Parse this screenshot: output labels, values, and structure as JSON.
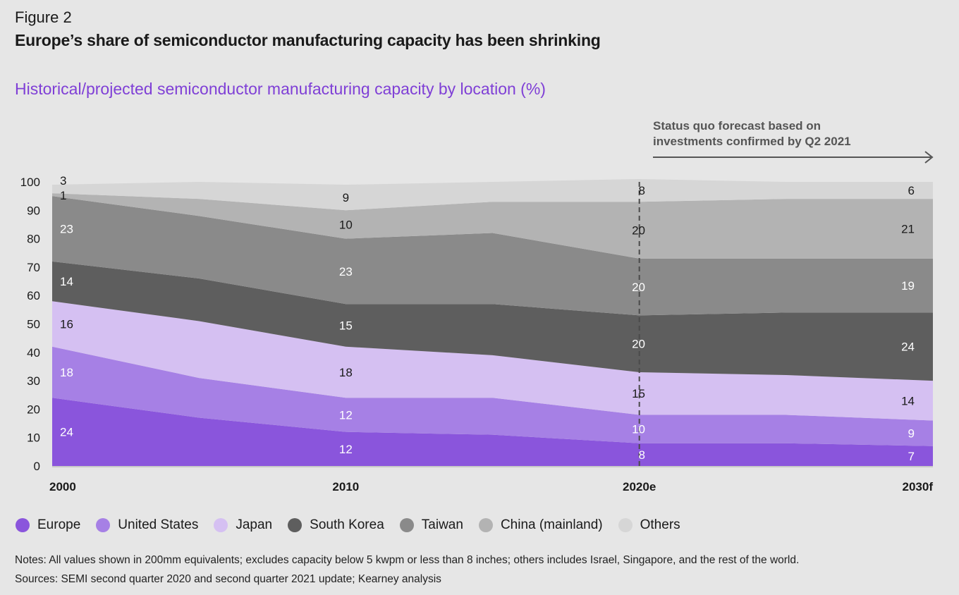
{
  "header": {
    "figure_label": "Figure 2",
    "title": "Europe’s share of semiconductor manufacturing capacity has been shrinking",
    "subtitle": "Historical/projected semiconductor manufacturing capacity by location (%)",
    "forecast_note_line1": "Status quo forecast based on",
    "forecast_note_line2": "investments confirmed by Q2 2021"
  },
  "colors": {
    "Europe": "#8a55dc",
    "United States": "#a680e5",
    "Japan": "#d5c0f2",
    "South Korea": "#5e5e5e",
    "Taiwan": "#8a8a8a",
    "China (mainland)": "#b3b3b3",
    "Others": "#d6d6d6"
  },
  "chart_data": {
    "type": "area",
    "stacked": true,
    "x": [
      2000,
      2005,
      2010,
      2015,
      2020,
      2025,
      2030
    ],
    "x_tick_labels": [
      {
        "x": 2000,
        "label": "2000"
      },
      {
        "x": 2010,
        "label": "2010"
      },
      {
        "x": 2020,
        "label": "2020e"
      },
      {
        "x": 2030,
        "label": "2030f"
      }
    ],
    "ylim": [
      0,
      100
    ],
    "y_ticks": [
      0,
      10,
      20,
      30,
      40,
      50,
      60,
      70,
      80,
      90,
      100
    ],
    "forecast_divider_x": 2020,
    "series": [
      {
        "name": "Europe",
        "values": [
          24,
          17,
          12,
          11,
          8,
          8,
          7
        ]
      },
      {
        "name": "United States",
        "values": [
          18,
          14,
          12,
          13,
          10,
          10,
          9
        ]
      },
      {
        "name": "Japan",
        "values": [
          16,
          20,
          18,
          15,
          15,
          14,
          14
        ]
      },
      {
        "name": "South Korea",
        "values": [
          14,
          15,
          15,
          18,
          20,
          22,
          24
        ]
      },
      {
        "name": "Taiwan",
        "values": [
          23,
          22,
          23,
          25,
          20,
          19,
          19
        ]
      },
      {
        "name": "China (mainland)",
        "values": [
          1,
          6,
          10,
          11,
          20,
          21,
          21
        ]
      },
      {
        "name": "Others",
        "values": [
          3,
          6,
          9,
          7,
          8,
          6,
          6
        ]
      }
    ],
    "data_labels": [
      {
        "series": "Europe",
        "x": 2000,
        "text": "24"
      },
      {
        "series": "United States",
        "x": 2000,
        "text": "18"
      },
      {
        "series": "Japan",
        "x": 2000,
        "text": "16"
      },
      {
        "series": "South Korea",
        "x": 2000,
        "text": "14"
      },
      {
        "series": "Taiwan",
        "x": 2000,
        "text": "23"
      },
      {
        "series": "China (mainland)",
        "x": 2000,
        "text": "1"
      },
      {
        "series": "Others",
        "x": 2000,
        "text": "3"
      },
      {
        "series": "Europe",
        "x": 2010,
        "text": "12"
      },
      {
        "series": "United States",
        "x": 2010,
        "text": "12"
      },
      {
        "series": "Japan",
        "x": 2010,
        "text": "18"
      },
      {
        "series": "South Korea",
        "x": 2010,
        "text": "15"
      },
      {
        "series": "Taiwan",
        "x": 2010,
        "text": "23"
      },
      {
        "series": "China (mainland)",
        "x": 2010,
        "text": "10"
      },
      {
        "series": "Others",
        "x": 2010,
        "text": "9"
      },
      {
        "series": "Europe",
        "x": 2020,
        "text": "8"
      },
      {
        "series": "United States",
        "x": 2020,
        "text": "10"
      },
      {
        "series": "Japan",
        "x": 2020,
        "text": "15"
      },
      {
        "series": "South Korea",
        "x": 2020,
        "text": "20"
      },
      {
        "series": "Taiwan",
        "x": 2020,
        "text": "20"
      },
      {
        "series": "China (mainland)",
        "x": 2020,
        "text": "20"
      },
      {
        "series": "Others",
        "x": 2020,
        "text": "8"
      },
      {
        "series": "Europe",
        "x": 2030,
        "text": "7"
      },
      {
        "series": "United States",
        "x": 2030,
        "text": "9"
      },
      {
        "series": "Japan",
        "x": 2030,
        "text": "14"
      },
      {
        "series": "South Korea",
        "x": 2030,
        "text": "24"
      },
      {
        "series": "Taiwan",
        "x": 2030,
        "text": "19"
      },
      {
        "series": "China (mainland)",
        "x": 2030,
        "text": "21"
      },
      {
        "series": "Others",
        "x": 2030,
        "text": "6"
      }
    ],
    "legend_position": "bottom-left"
  },
  "legend": [
    {
      "label": "Europe"
    },
    {
      "label": "United States"
    },
    {
      "label": "Japan"
    },
    {
      "label": "South Korea"
    },
    {
      "label": "Taiwan"
    },
    {
      "label": "China (mainland)"
    },
    {
      "label": "Others"
    }
  ],
  "footer": {
    "notes": "Notes: All values shown in 200mm equivalents; excludes capacity below 5 kwpm or less than 8 inches; others includes Israel, Singapore, and the rest of the world.",
    "sources": "Sources: SEMI second quarter 2020 and second quarter 2021 update; Kearney analysis"
  }
}
